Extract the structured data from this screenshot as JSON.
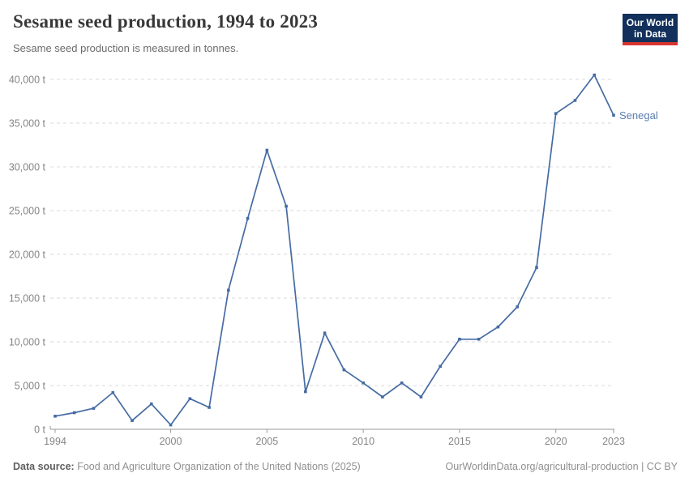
{
  "header": {
    "title": "Sesame seed production, 1994 to 2023",
    "subtitle": "Sesame seed production is measured in tonnes.",
    "logo": {
      "line1": "Our World",
      "line2": "in Data"
    }
  },
  "chart_data": {
    "type": "line",
    "title": "Sesame seed production, 1994 to 2023",
    "subtitle": "Sesame seed production is measured in tonnes.",
    "x": [
      1994,
      1995,
      1996,
      1997,
      1998,
      1999,
      2000,
      2001,
      2002,
      2003,
      2004,
      2005,
      2006,
      2007,
      2008,
      2009,
      2010,
      2011,
      2012,
      2013,
      2014,
      2015,
      2016,
      2017,
      2018,
      2019,
      2020,
      2021,
      2022,
      2023
    ],
    "series": [
      {
        "name": "Senegal",
        "color": "#466ba3",
        "values": [
          1500,
          1900,
          2400,
          4200,
          1000,
          2900,
          500,
          3500,
          2500,
          15900,
          24100,
          31900,
          25500,
          4300,
          11000,
          6800,
          5300,
          3700,
          5300,
          3700,
          7200,
          10300,
          10300,
          11700,
          14000,
          18500,
          36100,
          37600,
          40500,
          35900
        ]
      }
    ],
    "xlabel": "",
    "ylabel": "",
    "x_ticks": [
      1994,
      2000,
      2005,
      2010,
      2015,
      2020,
      2023
    ],
    "y_ticks": [
      0,
      5000,
      10000,
      15000,
      20000,
      25000,
      30000,
      35000,
      40000
    ],
    "y_unit": "t",
    "xlim": [
      1994,
      2023
    ],
    "ylim": [
      0,
      40000
    ],
    "grid": "horizontal-dashed",
    "legend": "line-end-label"
  },
  "colors": {
    "line": "#466ba3",
    "series_label": "#5a7bae",
    "gridline": "#d8d8d8",
    "axis": "#999999",
    "tick_label": "#858585",
    "logo_bg": "#12305b",
    "logo_bar": "#d8352f"
  },
  "footer": {
    "source_label": "Data source:",
    "source_text": " Food and Agriculture Organization of the United Nations (2025)",
    "url": "OurWorldinData.org/agricultural-production",
    "separator": " | ",
    "license": "CC BY"
  }
}
